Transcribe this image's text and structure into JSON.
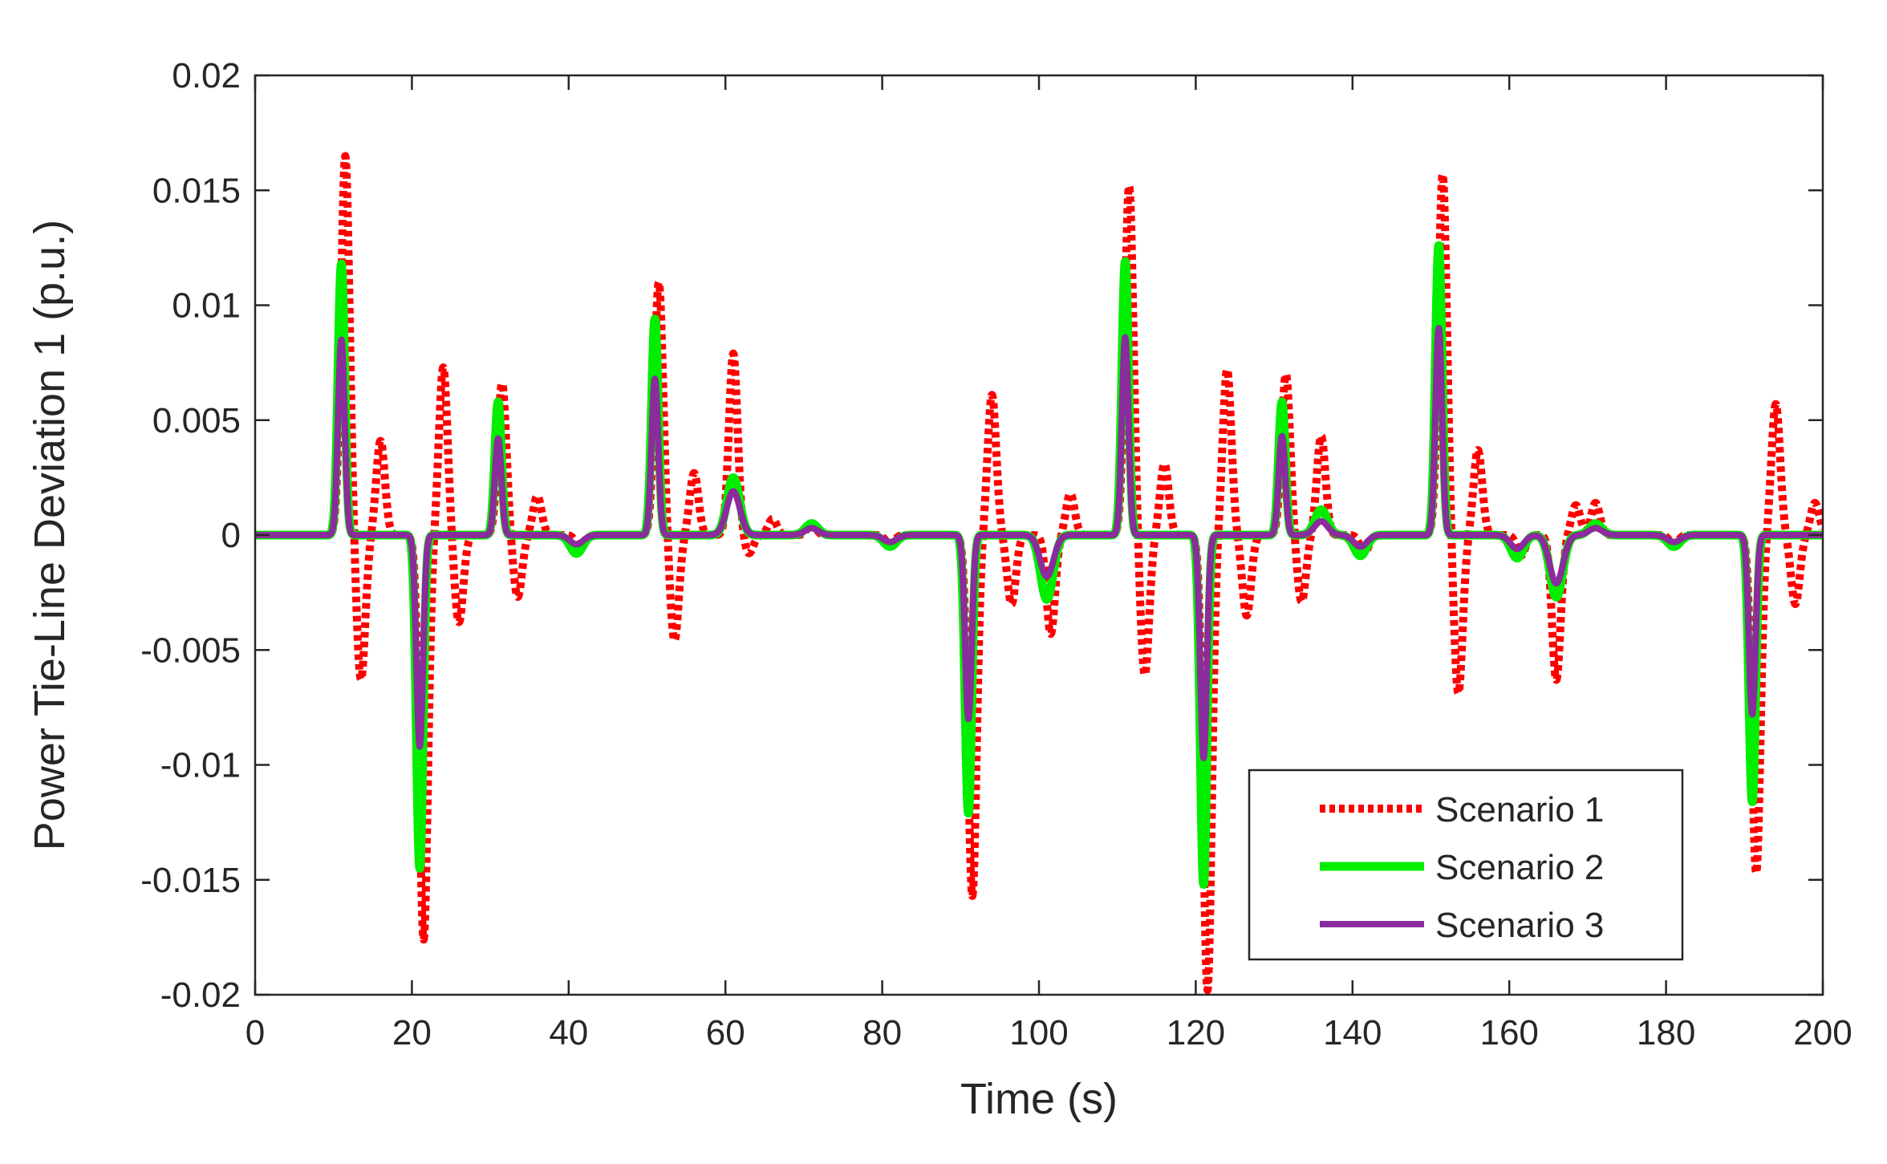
{
  "chart_data": {
    "type": "line",
    "title": "",
    "xlabel": "Time (s)",
    "ylabel": "Power Tie-Line Deviation 1 (p.u.)",
    "xlim": [
      0,
      200
    ],
    "ylim": [
      -0.02,
      0.02
    ],
    "xticks": [
      0,
      20,
      40,
      60,
      80,
      100,
      120,
      140,
      160,
      180,
      200
    ],
    "xtick_labels": [
      "0",
      "20",
      "40",
      "60",
      "80",
      "100",
      "120",
      "140",
      "160",
      "180",
      "200"
    ],
    "yticks": [
      -0.02,
      -0.015,
      -0.01,
      -0.005,
      0,
      0.005,
      0.01,
      0.015,
      0.02
    ],
    "ytick_labels": [
      "-0.02",
      "-0.015",
      "-0.01",
      "-0.005",
      "0",
      "0.005",
      "0.01",
      "0.015",
      "0.02"
    ],
    "grid": false,
    "legend_position": "bottom-right",
    "disturbance_times": [
      10,
      20,
      30,
      40,
      50,
      60,
      70,
      80,
      90,
      100,
      110,
      120,
      130,
      140,
      150,
      160,
      170,
      180,
      190
    ],
    "series": [
      {
        "name": "Scenario 1",
        "color": "#ff0000",
        "style": "dotted",
        "peaks": [
          {
            "t": 11.5,
            "v": 0.0165
          },
          {
            "t": 13.5,
            "v": -0.0063
          },
          {
            "t": 16,
            "v": 0.0041
          },
          {
            "t": 21.5,
            "v": -0.0176
          },
          {
            "t": 24,
            "v": 0.0073
          },
          {
            "t": 26,
            "v": -0.0038
          },
          {
            "t": 31.5,
            "v": 0.0066
          },
          {
            "t": 33.5,
            "v": -0.0027
          },
          {
            "t": 36,
            "v": 0.0017
          },
          {
            "t": 41.5,
            "v": -0.0006
          },
          {
            "t": 51.5,
            "v": 0.011
          },
          {
            "t": 53.5,
            "v": -0.0046
          },
          {
            "t": 56,
            "v": 0.0027
          },
          {
            "t": 61,
            "v": 0.0079
          },
          {
            "t": 63,
            "v": -0.0008
          },
          {
            "t": 66,
            "v": 0.0007
          },
          {
            "t": 71,
            "v": 0.0005
          },
          {
            "t": 81,
            "v": -0.0004
          },
          {
            "t": 91.5,
            "v": -0.0157
          },
          {
            "t": 94,
            "v": 0.0061
          },
          {
            "t": 96.5,
            "v": -0.003
          },
          {
            "t": 101.5,
            "v": -0.0043
          },
          {
            "t": 104,
            "v": 0.0018
          },
          {
            "t": 111.5,
            "v": 0.0152
          },
          {
            "t": 113.5,
            "v": -0.0061
          },
          {
            "t": 116,
            "v": 0.0031
          },
          {
            "t": 121.5,
            "v": -0.0198
          },
          {
            "t": 124,
            "v": 0.0072
          },
          {
            "t": 126.5,
            "v": -0.0035
          },
          {
            "t": 131.5,
            "v": 0.007
          },
          {
            "t": 133.5,
            "v": -0.0029
          },
          {
            "t": 136,
            "v": 0.0043
          },
          {
            "t": 141.5,
            "v": -0.0008
          },
          {
            "t": 151.5,
            "v": 0.0157
          },
          {
            "t": 153.5,
            "v": -0.0069
          },
          {
            "t": 156,
            "v": 0.0037
          },
          {
            "t": 161.5,
            "v": -0.0009
          },
          {
            "t": 166,
            "v": -0.0063
          },
          {
            "t": 168.5,
            "v": 0.0013
          },
          {
            "t": 171,
            "v": 0.0014
          },
          {
            "t": 181,
            "v": -0.0004
          },
          {
            "t": 191.5,
            "v": -0.0147
          },
          {
            "t": 194,
            "v": 0.0057
          },
          {
            "t": 196.5,
            "v": -0.003
          },
          {
            "t": 199,
            "v": 0.0014
          }
        ]
      },
      {
        "name": "Scenario 2",
        "color": "#00ee00",
        "style": "solid",
        "peaks": [
          {
            "t": 11,
            "v": 0.0118
          },
          {
            "t": 21,
            "v": -0.0145
          },
          {
            "t": 31,
            "v": 0.0058
          },
          {
            "t": 41,
            "v": -0.0008
          },
          {
            "t": 51,
            "v": 0.0094
          },
          {
            "t": 61,
            "v": 0.0025
          },
          {
            "t": 71,
            "v": 0.0005
          },
          {
            "t": 81,
            "v": -0.0005
          },
          {
            "t": 91,
            "v": -0.0121
          },
          {
            "t": 101,
            "v": -0.0028
          },
          {
            "t": 111,
            "v": 0.0119
          },
          {
            "t": 121,
            "v": -0.0152
          },
          {
            "t": 131,
            "v": 0.0058
          },
          {
            "t": 136,
            "v": 0.0011
          },
          {
            "t": 141,
            "v": -0.0009
          },
          {
            "t": 151,
            "v": 0.0126
          },
          {
            "t": 161,
            "v": -0.001
          },
          {
            "t": 166,
            "v": -0.0027
          },
          {
            "t": 171,
            "v": 0.0005
          },
          {
            "t": 181,
            "v": -0.0005
          },
          {
            "t": 191,
            "v": -0.0116
          }
        ]
      },
      {
        "name": "Scenario 3",
        "color": "#8b2c9c",
        "style": "solid",
        "peaks": [
          {
            "t": 11,
            "v": 0.0085
          },
          {
            "t": 21,
            "v": -0.0092
          },
          {
            "t": 31,
            "v": 0.0042
          },
          {
            "t": 41,
            "v": -0.0004
          },
          {
            "t": 51,
            "v": 0.0068
          },
          {
            "t": 61,
            "v": 0.0019
          },
          {
            "t": 71,
            "v": 0.0003
          },
          {
            "t": 81,
            "v": -0.0003
          },
          {
            "t": 91,
            "v": -0.008
          },
          {
            "t": 101,
            "v": -0.0018
          },
          {
            "t": 111,
            "v": 0.0086
          },
          {
            "t": 121,
            "v": -0.0097
          },
          {
            "t": 131,
            "v": 0.0043
          },
          {
            "t": 136,
            "v": 0.0006
          },
          {
            "t": 141,
            "v": -0.0005
          },
          {
            "t": 151,
            "v": 0.009
          },
          {
            "t": 161,
            "v": -0.0006
          },
          {
            "t": 166,
            "v": -0.0021
          },
          {
            "t": 171,
            "v": 0.0003
          },
          {
            "t": 181,
            "v": -0.0003
          },
          {
            "t": 191,
            "v": -0.0078
          }
        ]
      }
    ]
  }
}
